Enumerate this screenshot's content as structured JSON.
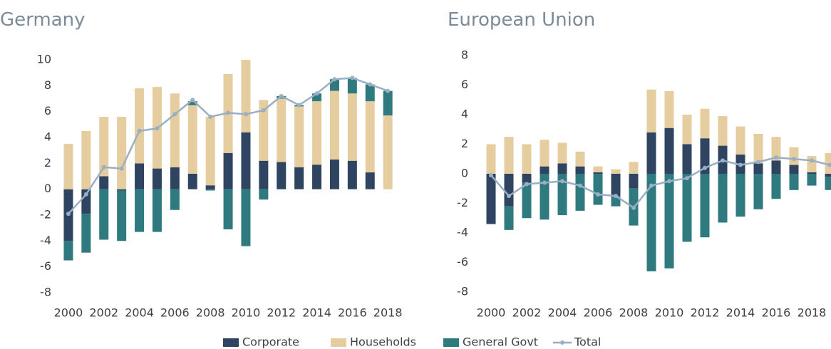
{
  "chart_data": [
    {
      "type": "bar",
      "stacked": true,
      "title": "Germany",
      "categories": [
        "2000",
        null,
        "2002",
        null,
        "2004",
        null,
        "2006",
        null,
        "2008",
        null,
        "2010",
        null,
        "2012",
        null,
        "2014",
        null,
        "2016",
        null,
        "2018"
      ],
      "ylim": [
        -8,
        10
      ],
      "yticks": [
        -8,
        -6,
        -4,
        -2,
        0,
        2,
        4,
        6,
        8,
        10
      ],
      "grid": false,
      "series": [
        {
          "name": "Corporate",
          "color": "#2e4460",
          "values": [
            -4,
            -1.9,
            1.0,
            -0.1,
            2.0,
            1.6,
            1.7,
            1.2,
            0.3,
            2.8,
            4.4,
            2.2,
            2.1,
            1.7,
            1.9,
            2.3,
            2.2,
            1.3,
            0
          ]
        },
        {
          "name": "Households",
          "color": "#e6cda0",
          "values": [
            3.5,
            4.5,
            4.6,
            5.6,
            5.8,
            6.3,
            5.7,
            5.3,
            5.3,
            6.1,
            5.6,
            4.7,
            4.9,
            4.7,
            4.9,
            5.3,
            5.2,
            5.5,
            5.7
          ]
        },
        {
          "name": "General Govt",
          "color": "#2f7a7e",
          "values": [
            -1.5,
            -3.0,
            -3.9,
            -3.9,
            -3.3,
            -3.3,
            -1.6,
            0.3,
            -0.1,
            -3.1,
            -4.4,
            -0.8,
            0.2,
            0.1,
            0.6,
            0.9,
            1.2,
            1.3,
            1.9
          ]
        },
        {
          "name": "Total",
          "type": "line",
          "color": "#9aaec4",
          "values": [
            -1.9,
            -0.4,
            1.7,
            1.6,
            4.5,
            4.7,
            5.8,
            6.9,
            5.6,
            5.9,
            5.8,
            6.1,
            7.2,
            6.5,
            7.4,
            8.5,
            8.6,
            8.1,
            7.6
          ]
        }
      ]
    },
    {
      "type": "bar",
      "stacked": true,
      "title": "European Union",
      "categories": [
        "2000",
        null,
        "2002",
        null,
        "2004",
        null,
        "2006",
        null,
        "2008",
        null,
        "2010",
        null,
        "2012",
        null,
        "2014",
        null,
        "2016",
        null,
        "2018",
        null
      ],
      "ylim": [
        -8,
        8
      ],
      "yticks": [
        -8,
        -6,
        -4,
        -2,
        0,
        2,
        4,
        6,
        8
      ],
      "grid": false,
      "series": [
        {
          "color": "#2e4460",
          "values": [
            -3.4,
            -2.2,
            -0.6,
            0.5,
            0.7,
            0.5,
            0.1,
            -1.5,
            -1.0,
            2.8,
            3.1,
            2.0,
            2.4,
            1.9,
            1.3,
            0.7,
            0.9,
            0.6,
            0.1,
            -0.2
          ]
        },
        {
          "color": "#e6cda0",
          "values": [
            2.0,
            2.5,
            2.0,
            1.8,
            1.4,
            1.0,
            0.4,
            0.3,
            0.8,
            2.9,
            2.5,
            2.0,
            2.0,
            2.0,
            1.9,
            2.0,
            1.6,
            1.2,
            1.1,
            1.4
          ]
        },
        {
          "color": "#2f7a7e",
          "values": [
            0,
            -1.6,
            -2.4,
            -3.1,
            -2.8,
            -2.5,
            -2.1,
            -0.7,
            -2.5,
            -6.6,
            -6.4,
            -4.6,
            -4.3,
            -3.3,
            -2.9,
            -2.4,
            -1.7,
            -1.1,
            -0.8,
            -0.9
          ]
        },
        {
          "type": "line",
          "color": "#9aaec4",
          "values": [
            -0.1,
            -1.5,
            -0.7,
            -0.6,
            -0.5,
            -0.8,
            -1.4,
            -1.5,
            -2.3,
            -0.8,
            -0.5,
            -0.3,
            0.4,
            0.9,
            0.6,
            0.8,
            1.1,
            1.0,
            0.9,
            0.6
          ]
        }
      ]
    }
  ]
}
